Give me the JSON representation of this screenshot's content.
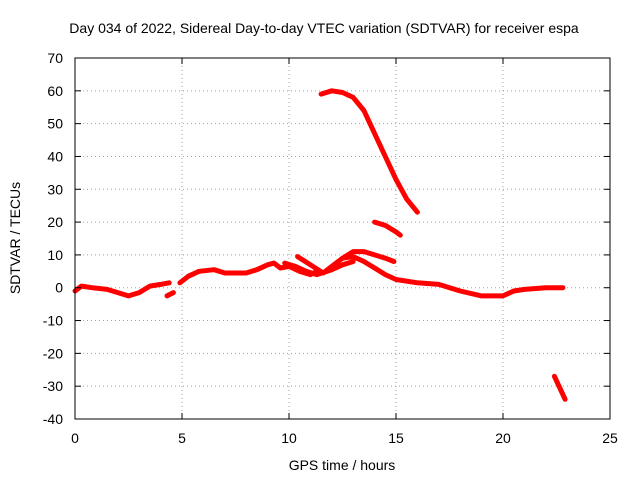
{
  "chart_data": {
    "type": "line",
    "title": "Day 034 of 2022, Sidereal Day-to-day VTEC variation (SDTVAR) for receiver espa",
    "xlabel": "GPS time / hours",
    "ylabel": "SDTVAR / TECUs",
    "xlim": [
      0,
      25
    ],
    "ylim": [
      -40,
      70
    ],
    "xticks": [
      0,
      5,
      10,
      15,
      20,
      25
    ],
    "yticks": [
      -40,
      -30,
      -20,
      -10,
      0,
      10,
      20,
      30,
      40,
      50,
      60,
      70
    ],
    "grid": true,
    "legend": "none",
    "color": "#ff0000",
    "series": [
      {
        "name": "arc-1",
        "points": [
          [
            0,
            -1
          ],
          [
            0.3,
            0.5
          ],
          [
            0.8,
            0
          ],
          [
            1.5,
            -0.5
          ],
          [
            2.0,
            -1.5
          ],
          [
            2.5,
            -2.5
          ],
          [
            3.0,
            -1.5
          ],
          [
            3.5,
            0.5
          ],
          [
            4.0,
            1.0
          ],
          [
            4.4,
            1.5
          ]
        ]
      },
      {
        "name": "arc-2",
        "points": [
          [
            4.3,
            -2.5
          ],
          [
            4.6,
            -1.5
          ]
        ]
      },
      {
        "name": "arc-3",
        "points": [
          [
            4.9,
            1.5
          ],
          [
            5.3,
            3.5
          ],
          [
            5.8,
            5
          ],
          [
            6.5,
            5.5
          ],
          [
            7.0,
            4.5
          ],
          [
            8.0,
            4.5
          ],
          [
            8.5,
            5.5
          ],
          [
            9.0,
            7
          ],
          [
            9.3,
            7.5
          ],
          [
            9.6,
            6
          ],
          [
            10.0,
            6.5
          ],
          [
            10.5,
            5
          ],
          [
            11.0,
            4
          ],
          [
            11.3,
            5
          ]
        ]
      },
      {
        "name": "arc-4",
        "points": [
          [
            9.8,
            7.5
          ],
          [
            10.3,
            6.5
          ],
          [
            10.8,
            5
          ],
          [
            11.3,
            4
          ],
          [
            12.0,
            5.5
          ],
          [
            12.5,
            7
          ],
          [
            13.0,
            8
          ]
        ]
      },
      {
        "name": "arc-5",
        "points": [
          [
            10.4,
            9.5
          ],
          [
            11.0,
            7
          ],
          [
            11.6,
            4.5
          ],
          [
            12.0,
            6.5
          ],
          [
            12.5,
            9
          ],
          [
            13.0,
            11
          ],
          [
            13.5,
            11
          ],
          [
            14.0,
            10
          ],
          [
            14.5,
            9
          ],
          [
            14.9,
            8
          ]
        ]
      },
      {
        "name": "arc-6",
        "points": [
          [
            12.5,
            9
          ],
          [
            13.0,
            9.5
          ],
          [
            13.5,
            8
          ],
          [
            14.0,
            6
          ],
          [
            14.5,
            4
          ],
          [
            15.0,
            2.5
          ],
          [
            16.0,
            1.5
          ],
          [
            17.0,
            1
          ],
          [
            18.0,
            -1
          ],
          [
            19.0,
            -2.5
          ],
          [
            20.0,
            -2.5
          ],
          [
            20.5,
            -1
          ],
          [
            21.0,
            -0.5
          ],
          [
            22.0,
            0
          ],
          [
            22.8,
            0
          ]
        ]
      },
      {
        "name": "arc-7",
        "points": [
          [
            11.5,
            59
          ],
          [
            12.0,
            60
          ],
          [
            12.5,
            59.5
          ],
          [
            13.0,
            58
          ],
          [
            13.5,
            54
          ],
          [
            14.0,
            47
          ],
          [
            14.5,
            40
          ],
          [
            15.0,
            33
          ],
          [
            15.5,
            27
          ],
          [
            16.0,
            23
          ]
        ]
      },
      {
        "name": "arc-8",
        "points": [
          [
            14.0,
            20
          ],
          [
            14.5,
            19
          ],
          [
            15.0,
            17
          ],
          [
            15.2,
            16
          ]
        ]
      },
      {
        "name": "arc-9",
        "points": [
          [
            22.4,
            -27
          ],
          [
            22.9,
            -34
          ]
        ]
      }
    ]
  }
}
